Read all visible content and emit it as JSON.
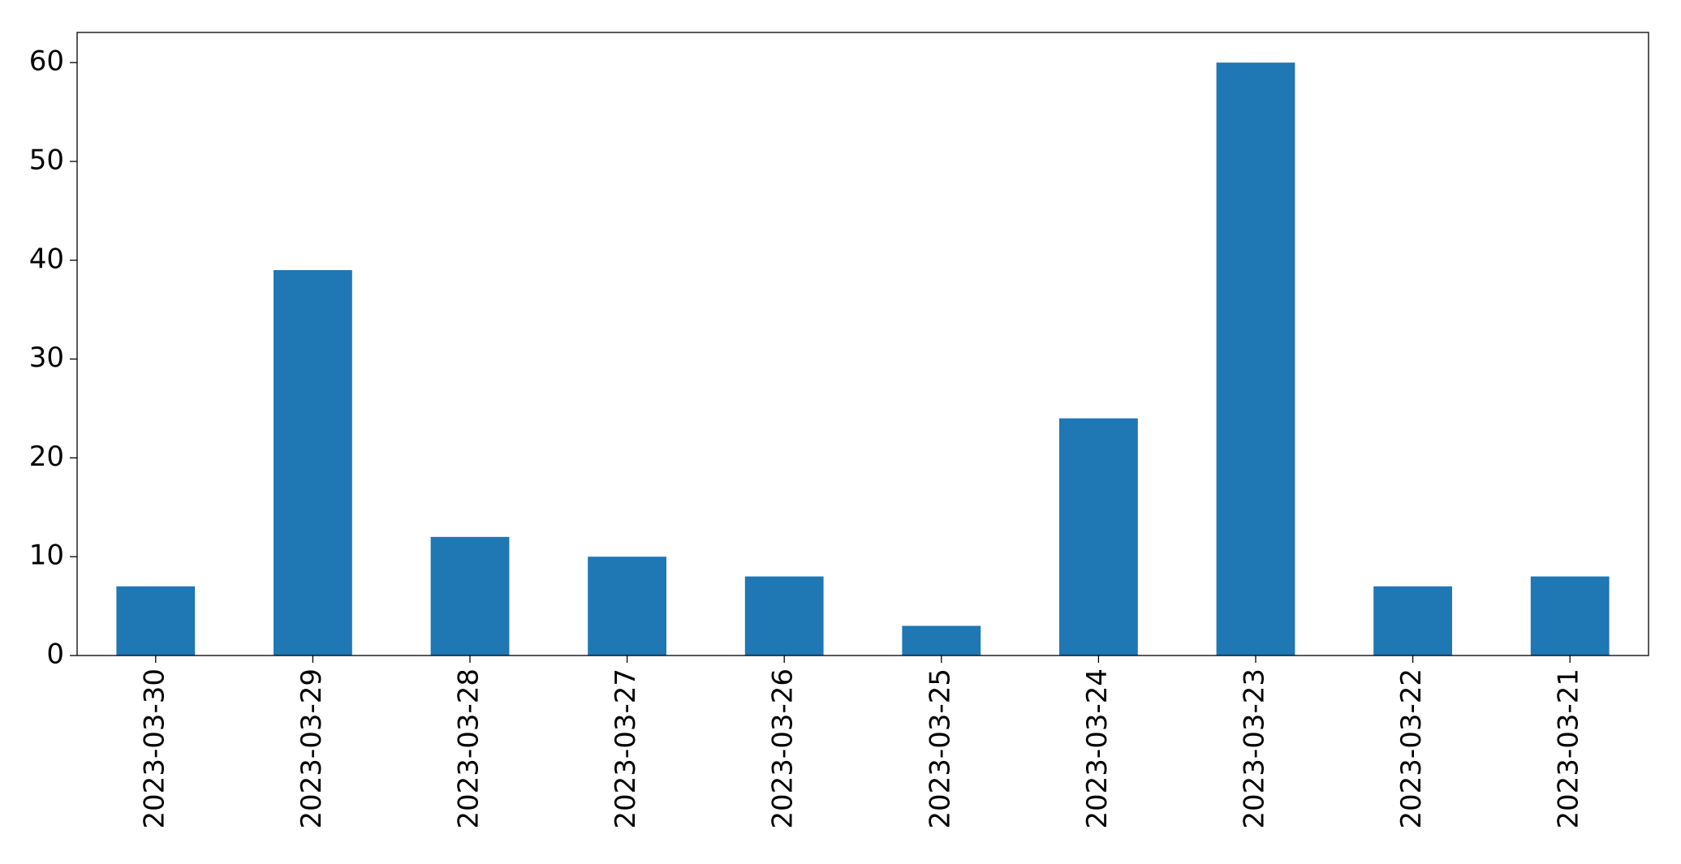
{
  "chart_data": {
    "type": "bar",
    "categories": [
      "2023-03-30",
      "2023-03-29",
      "2023-03-28",
      "2023-03-27",
      "2023-03-26",
      "2023-03-25",
      "2023-03-24",
      "2023-03-23",
      "2023-03-22",
      "2023-03-21"
    ],
    "values": [
      7,
      39,
      12,
      10,
      8,
      3,
      24,
      60,
      7,
      8
    ],
    "color": "#1f77b4",
    "ylim": [
      0,
      63.05
    ],
    "yticks": [
      0,
      10,
      20,
      30,
      40,
      50,
      60
    ],
    "grid": false
  }
}
